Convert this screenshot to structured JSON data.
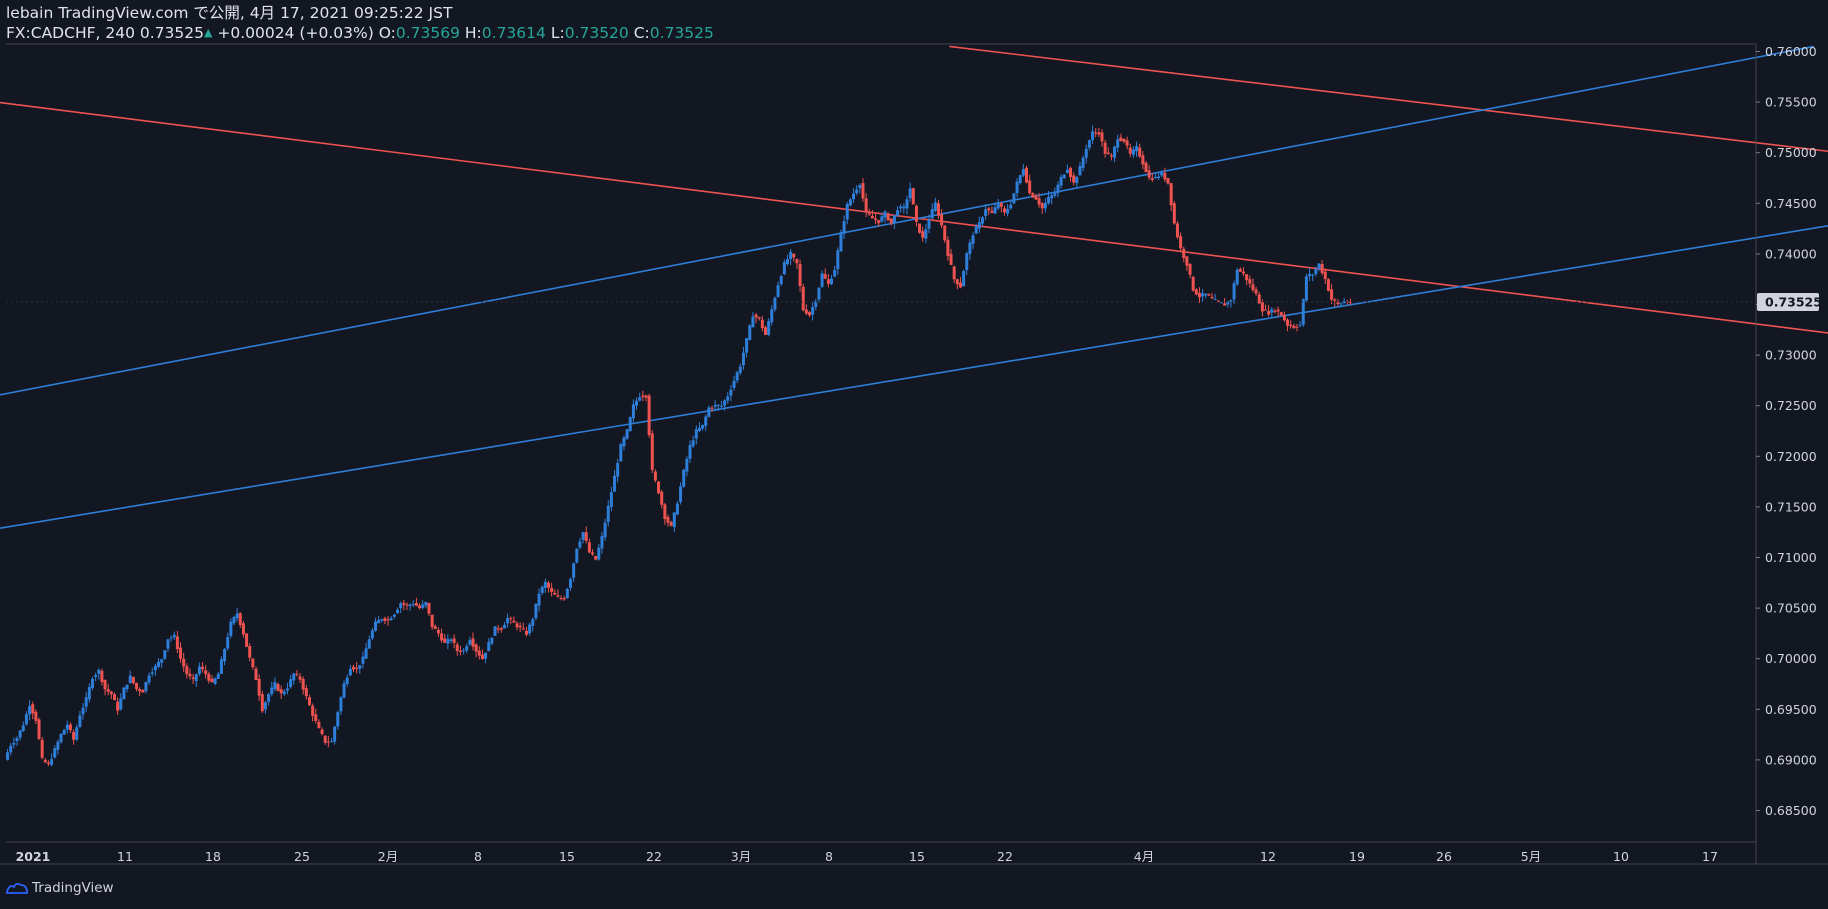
{
  "header": {
    "published": "lebain TradingView.com で公開, 4月 17, 2021 09:25:22 JST",
    "symbol_line": "FX:CADCHF, 240",
    "last": "0.73525",
    "change": "+0.00024 (+0.03%)",
    "o_label": "O:",
    "o": "0.73569",
    "h_label": "H:",
    "h": "0.73614",
    "l_label": "L:",
    "l": "0.73520",
    "c_label": "C:",
    "c": "0.73525"
  },
  "footer": {
    "brand": "TradingView",
    "icon": "tradingview-logo-icon"
  },
  "colors": {
    "background": "#131722",
    "up": "#2e7fd9",
    "down": "#ef5350",
    "trend_red": "#ef5350",
    "trend_blue": "#2e7fd9",
    "price_label_bg": "#d1d4dc"
  },
  "chart_data": {
    "type": "candlestick",
    "symbol": "FX:CADCHF",
    "interval": "240",
    "ylim": [
      0.683,
      0.761
    ],
    "y_ticks": [
      "0.76000",
      "0.75500",
      "0.75000",
      "0.74500",
      "0.74000",
      "0.73500",
      "0.73000",
      "0.72500",
      "0.72000",
      "0.71500",
      "0.71000",
      "0.70500",
      "0.70000",
      "0.69500",
      "0.69000",
      "0.68500"
    ],
    "x_ticks": [
      "2021",
      "11",
      "18",
      "25",
      "2月",
      "8",
      "15",
      "22",
      "3月",
      "8",
      "15",
      "22",
      "4月",
      "12",
      "19",
      "26",
      "5月",
      "10",
      "17"
    ],
    "last_price_label": "0.73525",
    "price_path": [
      [
        0,
        0.69
      ],
      [
        0.5,
        0.6915
      ],
      [
        1,
        0.6922
      ],
      [
        1.5,
        0.6935
      ],
      [
        2,
        0.6955
      ],
      [
        2.5,
        0.694
      ],
      [
        3,
        0.69
      ],
      [
        3.5,
        0.6895
      ],
      [
        4,
        0.691
      ],
      [
        4.5,
        0.6925
      ],
      [
        5,
        0.6935
      ],
      [
        5.5,
        0.692
      ],
      [
        6,
        0.6945
      ],
      [
        6.5,
        0.696
      ],
      [
        7,
        0.6982
      ],
      [
        7.5,
        0.6988
      ],
      [
        8,
        0.697
      ],
      [
        8.5,
        0.6965
      ],
      [
        9,
        0.695
      ],
      [
        9.5,
        0.697
      ],
      [
        10,
        0.6982
      ],
      [
        10.5,
        0.697
      ],
      [
        11,
        0.6968
      ],
      [
        11.5,
        0.6985
      ],
      [
        12,
        0.6992
      ],
      [
        12.5,
        0.7
      ],
      [
        13,
        0.702
      ],
      [
        13.5,
        0.7022
      ],
      [
        14,
        0.7
      ],
      [
        14.5,
        0.6985
      ],
      [
        15,
        0.6978
      ],
      [
        15.5,
        0.6992
      ],
      [
        16,
        0.6985
      ],
      [
        16.5,
        0.6975
      ],
      [
        17,
        0.6985
      ],
      [
        17.5,
        0.701
      ],
      [
        18,
        0.7035
      ],
      [
        18.5,
        0.7045
      ],
      [
        19,
        0.7025
      ],
      [
        19.5,
        0.7
      ],
      [
        20,
        0.698
      ],
      [
        20.5,
        0.695
      ],
      [
        21,
        0.6965
      ],
      [
        21.5,
        0.6975
      ],
      [
        22,
        0.6965
      ],
      [
        22.5,
        0.6972
      ],
      [
        23,
        0.6985
      ],
      [
        23.5,
        0.698
      ],
      [
        24,
        0.6962
      ],
      [
        24.5,
        0.6945
      ],
      [
        25,
        0.693
      ],
      [
        25.5,
        0.6918
      ],
      [
        26,
        0.6918
      ],
      [
        26.5,
        0.6948
      ],
      [
        27,
        0.6975
      ],
      [
        27.5,
        0.6992
      ],
      [
        28,
        0.699
      ],
      [
        28.5,
        0.7
      ],
      [
        29,
        0.702
      ],
      [
        29.5,
        0.7035
      ],
      [
        30,
        0.704
      ],
      [
        30.5,
        0.7038
      ],
      [
        31,
        0.7045
      ],
      [
        31.5,
        0.7055
      ],
      [
        32,
        0.7052
      ],
      [
        32.5,
        0.7055
      ],
      [
        33,
        0.705
      ],
      [
        33.5,
        0.7055
      ],
      [
        34,
        0.7032
      ],
      [
        34.5,
        0.7025
      ],
      [
        35,
        0.7015
      ],
      [
        35.5,
        0.702
      ],
      [
        36,
        0.7008
      ],
      [
        36.5,
        0.7008
      ],
      [
        37,
        0.702
      ],
      [
        37.5,
        0.7008
      ],
      [
        38,
        0.7
      ],
      [
        38.5,
        0.7015
      ],
      [
        39,
        0.703
      ],
      [
        39.5,
        0.703
      ],
      [
        40,
        0.704
      ],
      [
        40.5,
        0.7035
      ],
      [
        41,
        0.703
      ],
      [
        41.5,
        0.7025
      ],
      [
        42,
        0.704
      ],
      [
        42.5,
        0.7065
      ],
      [
        43,
        0.7075
      ],
      [
        43.5,
        0.7065
      ],
      [
        44,
        0.706
      ],
      [
        44.5,
        0.706
      ],
      [
        45,
        0.708
      ],
      [
        45.5,
        0.711
      ],
      [
        46,
        0.7125
      ],
      [
        46.5,
        0.7105
      ],
      [
        47,
        0.7098
      ],
      [
        47.5,
        0.712
      ],
      [
        48,
        0.715
      ],
      [
        48.5,
        0.718
      ],
      [
        49,
        0.721
      ],
      [
        49.5,
        0.7225
      ],
      [
        50,
        0.725
      ],
      [
        50.5,
        0.726
      ],
      [
        51,
        0.726
      ],
      [
        51.5,
        0.7185
      ],
      [
        52,
        0.7165
      ],
      [
        52.5,
        0.714
      ],
      [
        53,
        0.713
      ],
      [
        53.5,
        0.7155
      ],
      [
        54,
        0.7185
      ],
      [
        54.5,
        0.721
      ],
      [
        55,
        0.7225
      ],
      [
        55.5,
        0.723
      ],
      [
        56,
        0.7248
      ],
      [
        56.5,
        0.725
      ],
      [
        57,
        0.725
      ],
      [
        57.5,
        0.726
      ],
      [
        58,
        0.7275
      ],
      [
        58.5,
        0.729
      ],
      [
        59,
        0.7315
      ],
      [
        59.5,
        0.734
      ],
      [
        60,
        0.7335
      ],
      [
        60.5,
        0.732
      ],
      [
        61,
        0.7345
      ],
      [
        61.5,
        0.737
      ],
      [
        62,
        0.739
      ],
      [
        62.5,
        0.74
      ],
      [
        63,
        0.739
      ],
      [
        63.5,
        0.7345
      ],
      [
        64,
        0.734
      ],
      [
        64.5,
        0.7355
      ],
      [
        65,
        0.738
      ],
      [
        65.5,
        0.737
      ],
      [
        66,
        0.7385
      ],
      [
        66.5,
        0.742
      ],
      [
        67,
        0.7448
      ],
      [
        67.5,
        0.746
      ],
      [
        68,
        0.747
      ],
      [
        68.5,
        0.744
      ],
      [
        69,
        0.7435
      ],
      [
        69.5,
        0.7432
      ],
      [
        70,
        0.744
      ],
      [
        70.5,
        0.743
      ],
      [
        71,
        0.7445
      ],
      [
        71.5,
        0.7445
      ],
      [
        72,
        0.7465
      ],
      [
        72.5,
        0.743
      ],
      [
        73,
        0.7415
      ],
      [
        73.5,
        0.7435
      ],
      [
        74,
        0.745
      ],
      [
        74.5,
        0.7428
      ],
      [
        75,
        0.74
      ],
      [
        75.5,
        0.7375
      ],
      [
        76,
        0.7368
      ],
      [
        76.5,
        0.74
      ],
      [
        77,
        0.742
      ],
      [
        77.5,
        0.743
      ],
      [
        78,
        0.7445
      ],
      [
        78.5,
        0.744
      ],
      [
        79,
        0.745
      ],
      [
        79.5,
        0.744
      ],
      [
        80,
        0.745
      ],
      [
        80.5,
        0.747
      ],
      [
        81,
        0.7485
      ],
      [
        81.5,
        0.746
      ],
      [
        82,
        0.7455
      ],
      [
        82.5,
        0.7445
      ],
      [
        83,
        0.7455
      ],
      [
        83.5,
        0.746
      ],
      [
        84,
        0.7475
      ],
      [
        84.5,
        0.7485
      ],
      [
        85,
        0.747
      ],
      [
        85.5,
        0.7485
      ],
      [
        86,
        0.7505
      ],
      [
        86.5,
        0.752
      ],
      [
        87,
        0.752
      ],
      [
        87.5,
        0.75
      ],
      [
        88,
        0.7495
      ],
      [
        88.5,
        0.7515
      ],
      [
        89,
        0.7512
      ],
      [
        89.5,
        0.7498
      ],
      [
        90,
        0.7505
      ],
      [
        90.5,
        0.749
      ],
      [
        91,
        0.7475
      ],
      [
        91.5,
        0.7475
      ],
      [
        92,
        0.748
      ],
      [
        92.5,
        0.747
      ],
      [
        93,
        0.743
      ],
      [
        93.5,
        0.7405
      ],
      [
        94,
        0.739
      ],
      [
        94.5,
        0.7365
      ],
      [
        95,
        0.7358
      ],
      [
        95.5,
        0.736
      ],
      [
        96,
        0.7355
      ],
      [
        96.5,
        0.7352
      ],
      [
        97,
        0.735
      ],
      [
        97.5,
        0.7355
      ],
      [
        98,
        0.7385
      ],
      [
        98.5,
        0.738
      ],
      [
        99,
        0.737
      ],
      [
        99.5,
        0.736
      ],
      [
        100,
        0.7345
      ],
      [
        100.5,
        0.7342
      ],
      [
        101,
        0.7345
      ],
      [
        101.5,
        0.734
      ],
      [
        102,
        0.733
      ],
      [
        102.5,
        0.7328
      ],
      [
        103,
        0.733
      ],
      [
        103.5,
        0.7378
      ],
      [
        104,
        0.738
      ],
      [
        104.5,
        0.739
      ],
      [
        105,
        0.7375
      ],
      [
        105.5,
        0.7355
      ],
      [
        106,
        0.735
      ],
      [
        106.5,
        0.7353
      ],
      [
        107,
        0.7352
      ]
    ],
    "trend_lines": [
      {
        "color": "red",
        "from": [
          "t",
          -7.5,
          0.75605
        ],
        "to": [
          "t",
          203.8,
          0.72295
        ]
      },
      {
        "color": "red",
        "from": [
          "t",
          75.0,
          0.7605
        ],
        "to": [
          "t",
          203.8,
          0.7414
        ]
      },
      {
        "color": "blue",
        "from": [
          "t",
          -7.5,
          0.7244
        ],
        "to": [
          "t",
          143.7,
          0.7605
        ]
      },
      {
        "color": "blue",
        "from": [
          "t",
          -7.5,
          0.71145
        ],
        "to": [
          "t",
          203.8,
          0.7549
        ]
      }
    ]
  }
}
